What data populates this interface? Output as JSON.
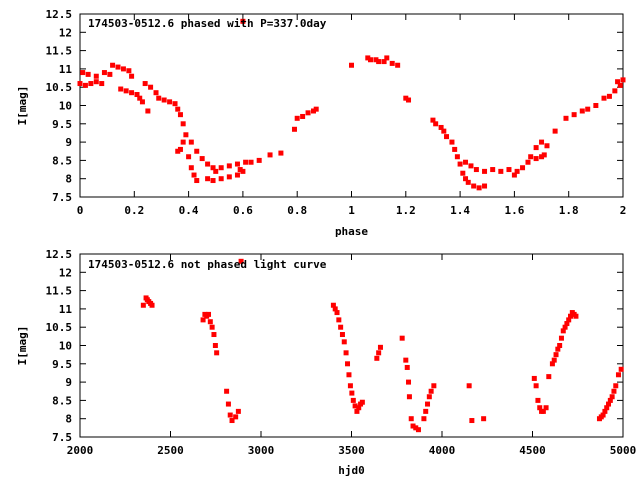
{
  "chart_data": [
    {
      "type": "scatter",
      "title": "174503-0512.6 phased with P=337.0day",
      "xlabel": "phase",
      "ylabel": "I[mag]",
      "xlim": [
        0,
        2
      ],
      "ylim": [
        12.5,
        7.5
      ],
      "y_inverted": true,
      "grid": false,
      "marker_color": "#ff0000",
      "xticks": [
        "0",
        "0.2",
        "0.4",
        "0.6",
        "0.8",
        "1",
        "1.2",
        "1.4",
        "1.6",
        "1.8",
        "2"
      ],
      "yticks": [
        "7.5",
        "8",
        "8.5",
        "9",
        "9.5",
        "10",
        "10.5",
        "11",
        "11.5",
        "12",
        "12.5"
      ],
      "points": [
        [
          0.0,
          10.6
        ],
        [
          0.02,
          10.55
        ],
        [
          0.04,
          10.6
        ],
        [
          0.06,
          10.65
        ],
        [
          0.08,
          10.6
        ],
        [
          0.01,
          10.9
        ],
        [
          0.03,
          10.85
        ],
        [
          0.06,
          10.8
        ],
        [
          0.09,
          10.9
        ],
        [
          0.11,
          10.85
        ],
        [
          0.12,
          11.1
        ],
        [
          0.14,
          11.05
        ],
        [
          0.16,
          11.0
        ],
        [
          0.18,
          10.95
        ],
        [
          0.19,
          10.8
        ],
        [
          0.15,
          10.45
        ],
        [
          0.17,
          10.4
        ],
        [
          0.19,
          10.35
        ],
        [
          0.21,
          10.3
        ],
        [
          0.22,
          10.2
        ],
        [
          0.23,
          10.1
        ],
        [
          0.25,
          9.85
        ],
        [
          0.24,
          10.6
        ],
        [
          0.26,
          10.5
        ],
        [
          0.28,
          10.35
        ],
        [
          0.29,
          10.2
        ],
        [
          0.31,
          10.15
        ],
        [
          0.33,
          10.1
        ],
        [
          0.35,
          10.05
        ],
        [
          0.36,
          9.9
        ],
        [
          0.37,
          9.75
        ],
        [
          0.38,
          9.5
        ],
        [
          0.39,
          9.2
        ],
        [
          0.41,
          9.0
        ],
        [
          0.43,
          8.75
        ],
        [
          0.45,
          8.55
        ],
        [
          0.47,
          8.4
        ],
        [
          0.49,
          8.3
        ],
        [
          0.5,
          8.2
        ],
        [
          0.52,
          8.3
        ],
        [
          0.55,
          8.35
        ],
        [
          0.58,
          8.4
        ],
        [
          0.61,
          8.45
        ],
        [
          0.63,
          8.45
        ],
        [
          0.66,
          8.5
        ],
        [
          0.36,
          8.75
        ],
        [
          0.37,
          8.8
        ],
        [
          0.38,
          9.0
        ],
        [
          0.4,
          8.6
        ],
        [
          0.41,
          8.3
        ],
        [
          0.42,
          8.1
        ],
        [
          0.43,
          7.95
        ],
        [
          0.47,
          8.0
        ],
        [
          0.49,
          7.95
        ],
        [
          0.52,
          8.0
        ],
        [
          0.55,
          8.05
        ],
        [
          0.58,
          8.1
        ],
        [
          0.59,
          8.25
        ],
        [
          0.6,
          8.2
        ],
        [
          0.6,
          12.3
        ],
        [
          0.7,
          8.65
        ],
        [
          0.74,
          8.7
        ],
        [
          0.79,
          9.35
        ],
        [
          0.8,
          9.65
        ],
        [
          0.82,
          9.7
        ],
        [
          0.84,
          9.8
        ],
        [
          0.86,
          9.85
        ],
        [
          0.87,
          9.9
        ],
        [
          1.0,
          11.1
        ],
        [
          1.06,
          11.3
        ],
        [
          1.07,
          11.25
        ],
        [
          1.09,
          11.25
        ],
        [
          1.1,
          11.2
        ],
        [
          1.12,
          11.2
        ],
        [
          1.13,
          11.3
        ],
        [
          1.15,
          11.15
        ],
        [
          1.17,
          11.1
        ],
        [
          1.2,
          10.2
        ],
        [
          1.21,
          10.15
        ],
        [
          1.3,
          9.6
        ],
        [
          1.31,
          9.5
        ],
        [
          1.33,
          9.4
        ],
        [
          1.34,
          9.3
        ],
        [
          1.35,
          9.15
        ],
        [
          1.37,
          9.0
        ],
        [
          1.38,
          8.8
        ],
        [
          1.39,
          8.6
        ],
        [
          1.4,
          8.4
        ],
        [
          1.41,
          8.15
        ],
        [
          1.42,
          8.0
        ],
        [
          1.43,
          7.9
        ],
        [
          1.45,
          7.8
        ],
        [
          1.47,
          7.75
        ],
        [
          1.49,
          7.8
        ],
        [
          1.42,
          8.45
        ],
        [
          1.44,
          8.35
        ],
        [
          1.46,
          8.25
        ],
        [
          1.49,
          8.2
        ],
        [
          1.52,
          8.25
        ],
        [
          1.55,
          8.2
        ],
        [
          1.58,
          8.25
        ],
        [
          1.6,
          8.1
        ],
        [
          1.61,
          8.2
        ],
        [
          1.63,
          8.3
        ],
        [
          1.65,
          8.45
        ],
        [
          1.66,
          8.6
        ],
        [
          1.68,
          8.55
        ],
        [
          1.7,
          8.6
        ],
        [
          1.71,
          8.65
        ],
        [
          1.68,
          8.85
        ],
        [
          1.7,
          9.0
        ],
        [
          1.72,
          8.9
        ],
        [
          1.75,
          9.3
        ],
        [
          1.79,
          9.65
        ],
        [
          1.82,
          9.75
        ],
        [
          1.85,
          9.85
        ],
        [
          1.87,
          9.9
        ],
        [
          1.9,
          10.0
        ],
        [
          1.93,
          10.2
        ],
        [
          1.95,
          10.25
        ],
        [
          1.97,
          10.4
        ],
        [
          1.98,
          10.65
        ],
        [
          1.99,
          10.55
        ],
        [
          2.0,
          10.7
        ]
      ]
    },
    {
      "type": "scatter",
      "title": "174503-0512.6 not phased light curve",
      "xlabel": "hjd0",
      "ylabel": "I[mag]",
      "xlim": [
        2000,
        5000
      ],
      "ylim": [
        12.5,
        7.5
      ],
      "y_inverted": true,
      "grid": false,
      "marker_color": "#ff0000",
      "xticks": [
        "2000",
        "2500",
        "3000",
        "3500",
        "4000",
        "4500",
        "5000"
      ],
      "yticks": [
        "7.5",
        "8",
        "8.5",
        "9",
        "9.5",
        "10",
        "10.5",
        "11",
        "11.5",
        "12",
        "12.5"
      ],
      "points": [
        [
          2350,
          11.1
        ],
        [
          2365,
          11.3
        ],
        [
          2372,
          11.25
        ],
        [
          2380,
          11.2
        ],
        [
          2390,
          11.15
        ],
        [
          2398,
          11.1
        ],
        [
          2680,
          10.7
        ],
        [
          2690,
          10.85
        ],
        [
          2700,
          10.8
        ],
        [
          2710,
          10.85
        ],
        [
          2720,
          10.65
        ],
        [
          2730,
          10.5
        ],
        [
          2740,
          10.3
        ],
        [
          2748,
          10.0
        ],
        [
          2755,
          9.8
        ],
        [
          2810,
          8.75
        ],
        [
          2820,
          8.4
        ],
        [
          2830,
          8.1
        ],
        [
          2840,
          7.95
        ],
        [
          2860,
          8.05
        ],
        [
          2875,
          8.2
        ],
        [
          2890,
          12.3
        ],
        [
          3400,
          11.1
        ],
        [
          3410,
          11.0
        ],
        [
          3420,
          10.9
        ],
        [
          3430,
          10.7
        ],
        [
          3440,
          10.5
        ],
        [
          3450,
          10.3
        ],
        [
          3460,
          10.1
        ],
        [
          3470,
          9.8
        ],
        [
          3478,
          9.5
        ],
        [
          3486,
          9.2
        ],
        [
          3494,
          8.9
        ],
        [
          3502,
          8.7
        ],
        [
          3510,
          8.5
        ],
        [
          3520,
          8.35
        ],
        [
          3530,
          8.2
        ],
        [
          3540,
          8.3
        ],
        [
          3550,
          8.4
        ],
        [
          3560,
          8.45
        ],
        [
          3640,
          9.65
        ],
        [
          3650,
          9.8
        ],
        [
          3660,
          9.95
        ],
        [
          3780,
          10.2
        ],
        [
          3800,
          9.6
        ],
        [
          3808,
          9.4
        ],
        [
          3815,
          9.0
        ],
        [
          3820,
          8.6
        ],
        [
          3830,
          8.0
        ],
        [
          3840,
          7.8
        ],
        [
          3855,
          7.75
        ],
        [
          3870,
          7.7
        ],
        [
          3900,
          8.0
        ],
        [
          3910,
          8.2
        ],
        [
          3920,
          8.4
        ],
        [
          3930,
          8.6
        ],
        [
          3940,
          8.75
        ],
        [
          3955,
          8.9
        ],
        [
          4150,
          8.9
        ],
        [
          4165,
          7.95
        ],
        [
          4230,
          8.0
        ],
        [
          4510,
          9.1
        ],
        [
          4520,
          8.9
        ],
        [
          4530,
          8.5
        ],
        [
          4540,
          8.3
        ],
        [
          4550,
          8.2
        ],
        [
          4560,
          8.2
        ],
        [
          4575,
          8.3
        ],
        [
          4590,
          9.15
        ],
        [
          4610,
          9.5
        ],
        [
          4620,
          9.6
        ],
        [
          4630,
          9.75
        ],
        [
          4640,
          9.9
        ],
        [
          4650,
          10.0
        ],
        [
          4660,
          10.2
        ],
        [
          4670,
          10.4
        ],
        [
          4680,
          10.5
        ],
        [
          4690,
          10.6
        ],
        [
          4700,
          10.7
        ],
        [
          4710,
          10.8
        ],
        [
          4720,
          10.9
        ],
        [
          4730,
          10.85
        ],
        [
          4740,
          10.8
        ],
        [
          4870,
          8.0
        ],
        [
          4880,
          8.05
        ],
        [
          4890,
          8.1
        ],
        [
          4900,
          8.2
        ],
        [
          4910,
          8.3
        ],
        [
          4920,
          8.4
        ],
        [
          4930,
          8.5
        ],
        [
          4940,
          8.6
        ],
        [
          4950,
          8.75
        ],
        [
          4960,
          8.9
        ],
        [
          4975,
          9.2
        ],
        [
          4990,
          9.35
        ]
      ]
    }
  ]
}
